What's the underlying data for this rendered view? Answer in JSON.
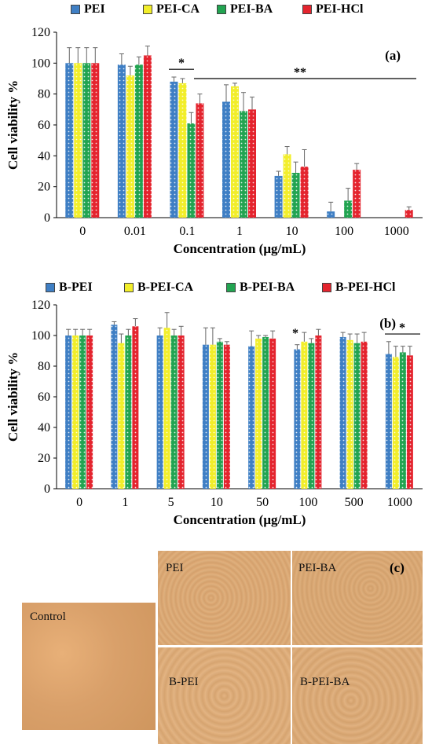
{
  "chart_data": [
    {
      "type": "bar",
      "panel_label": "(a)",
      "categories": [
        "0",
        "0.01",
        "0.1",
        "1",
        "10",
        "100",
        "1000"
      ],
      "series": [
        {
          "name": "PEI",
          "color": "#3f7fc4",
          "values": [
            100,
            99,
            88,
            75,
            27,
            4,
            0
          ],
          "errors": [
            10,
            7,
            3,
            11,
            3,
            6,
            0
          ]
        },
        {
          "name": "PEI-CA",
          "color": "#f2ee2a",
          "values": [
            100,
            92,
            87,
            85,
            41,
            0,
            0
          ],
          "errors": [
            10,
            6,
            3,
            2,
            5,
            0,
            0
          ]
        },
        {
          "name": "PEI-BA",
          "color": "#22a451",
          "values": [
            100,
            99,
            61,
            69,
            29,
            11,
            0
          ],
          "errors": [
            10,
            5,
            7,
            12,
            7,
            8,
            0
          ]
        },
        {
          "name": "PEI-HCl",
          "color": "#e4242e",
          "values": [
            100,
            105,
            74,
            70,
            33,
            31,
            5
          ],
          "errors": [
            10,
            6,
            6,
            8,
            11,
            4,
            2
          ]
        }
      ],
      "xlabel": "Concentration (μg/mL)",
      "ylabel": "Cell viability %",
      "ylim": [
        0,
        120
      ],
      "yticks": [
        "0",
        "20",
        "40",
        "60",
        "80",
        "100",
        "120"
      ],
      "grid": false,
      "legend": "top",
      "annotations": {
        "star1": "*",
        "star2": "**"
      }
    },
    {
      "type": "bar",
      "panel_label": "(b)",
      "categories": [
        "0",
        "1",
        "5",
        "10",
        "50",
        "100",
        "500",
        "1000"
      ],
      "series": [
        {
          "name": "B-PEI",
          "color": "#3f7fc4",
          "values": [
            100,
            107,
            100,
            94,
            93,
            91,
            99,
            88
          ],
          "errors": [
            4,
            2,
            5,
            11,
            10,
            3,
            3,
            8
          ]
        },
        {
          "name": "B-PEI-CA",
          "color": "#f2ee2a",
          "values": [
            100,
            95,
            105,
            94,
            98,
            96,
            97,
            86
          ],
          "errors": [
            4,
            6,
            10,
            11,
            2,
            6,
            4,
            7
          ]
        },
        {
          "name": "B-PEI-BA",
          "color": "#22a451",
          "values": [
            100,
            100,
            100,
            96,
            99,
            95,
            95,
            89
          ],
          "errors": [
            4,
            4,
            4,
            2,
            1,
            3,
            6,
            4
          ]
        },
        {
          "name": "B-PEI-HCl",
          "color": "#e4242e",
          "values": [
            100,
            106,
            100,
            94,
            98,
            100,
            96,
            87
          ],
          "errors": [
            4,
            5,
            6,
            2,
            5,
            4,
            6,
            6
          ]
        }
      ],
      "xlabel": "Concentration (μg/mL)",
      "ylabel": "Cell viability %",
      "ylim": [
        0,
        120
      ],
      "yticks": [
        "0",
        "20",
        "40",
        "60",
        "80",
        "100",
        "120"
      ],
      "grid": false,
      "legend": "top",
      "annotations": {
        "star1": "*",
        "star2": "*"
      }
    }
  ],
  "panel_c": {
    "label": "(c)",
    "images": {
      "control": "Control",
      "pei": "PEI",
      "pei_ba": "PEI-BA",
      "b_pei": "B-PEI",
      "b_pei_ba": "B-PEI-BA"
    }
  }
}
